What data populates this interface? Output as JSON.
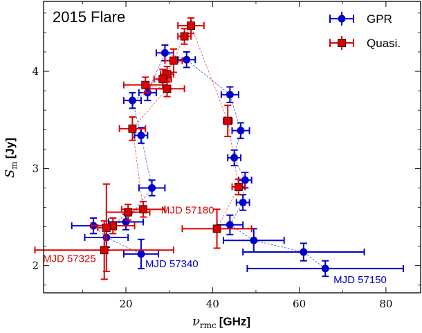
{
  "chart_data": {
    "type": "scatter",
    "title": "2015 Flare",
    "xlabel_symbol": "ν",
    "xlabel_sub": "rmc",
    "xlabel_unit": "[GHz]",
    "ylabel_symbol": "S",
    "ylabel_sub": "m",
    "ylabel_unit": "[Jy]",
    "xlim": [
      1,
      88
    ],
    "ylim": [
      1.72,
      4.72
    ],
    "xticks": [
      20,
      40,
      60,
      80
    ],
    "yticks": [
      2,
      3,
      4
    ],
    "legend_position": "top-right",
    "colors": {
      "gpr": "#0000cc",
      "quasi": "#dd0000"
    },
    "series": [
      {
        "name": "GPR",
        "marker": "circle",
        "color": "#0000cc",
        "points": [
          {
            "x": 66,
            "y": 1.97,
            "xerr": 18,
            "yerr": 0.08
          },
          {
            "x": 61,
            "y": 2.14,
            "xerr": 14,
            "yerr": 0.09
          },
          {
            "x": 49.5,
            "y": 2.26,
            "xerr": 7,
            "yerr": 0.12
          },
          {
            "x": 44,
            "y": 2.42,
            "xerr": 3,
            "yerr": 0.1
          },
          {
            "x": 47,
            "y": 2.65,
            "xerr": 1.5,
            "yerr": 0.08
          },
          {
            "x": 47.5,
            "y": 2.88,
            "xerr": 1.5,
            "yerr": 0.08
          },
          {
            "x": 45,
            "y": 3.11,
            "xerr": 1.5,
            "yerr": 0.08
          },
          {
            "x": 46.5,
            "y": 3.39,
            "xerr": 2,
            "yerr": 0.08
          },
          {
            "x": 44,
            "y": 3.76,
            "xerr": 2,
            "yerr": 0.08
          },
          {
            "x": 34,
            "y": 4.12,
            "xerr": 2,
            "yerr": 0.08
          },
          {
            "x": 29,
            "y": 4.19,
            "xerr": 2,
            "yerr": 0.08
          },
          {
            "x": 25,
            "y": 3.78,
            "xerr": 2,
            "yerr": 0.08
          },
          {
            "x": 21.5,
            "y": 3.7,
            "xerr": 2,
            "yerr": 0.08
          },
          {
            "x": 23.5,
            "y": 3.34,
            "xerr": 1.5,
            "yerr": 0.08
          },
          {
            "x": 26,
            "y": 2.8,
            "xerr": 3,
            "yerr": 0.08
          },
          {
            "x": 20,
            "y": 2.45,
            "xerr": 4,
            "yerr": 0.08
          },
          {
            "x": 12.5,
            "y": 2.41,
            "xerr": 5,
            "yerr": 0.08
          },
          {
            "x": 15.5,
            "y": 2.29,
            "xerr": 5,
            "yerr": 0.1
          },
          {
            "x": 23.5,
            "y": 2.12,
            "xerr": 4,
            "yerr": 0.15
          }
        ]
      },
      {
        "name": "Quasi.",
        "marker": "square",
        "color": "#dd0000",
        "points": [
          {
            "x": 41,
            "y": 2.38,
            "xerr": 8,
            "yerr": 0.2
          },
          {
            "x": 46,
            "y": 2.81,
            "xerr": 1.5,
            "yerr": 0.08
          },
          {
            "x": 43.5,
            "y": 3.49,
            "xerr": 1,
            "yerr": 0.16
          },
          {
            "x": 35,
            "y": 4.47,
            "xerr": 3,
            "yerr": 0.08
          },
          {
            "x": 33.5,
            "y": 4.36,
            "xerr": 1.5,
            "yerr": 0.08
          },
          {
            "x": 31,
            "y": 4.11,
            "xerr": 2,
            "yerr": 0.12
          },
          {
            "x": 29.5,
            "y": 3.97,
            "xerr": 1.5,
            "yerr": 0.08
          },
          {
            "x": 28.5,
            "y": 3.92,
            "xerr": 2,
            "yerr": 0.1
          },
          {
            "x": 24.5,
            "y": 3.86,
            "xerr": 5,
            "yerr": 0.08
          },
          {
            "x": 29.5,
            "y": 3.82,
            "xerr": 4,
            "yerr": 0.08
          },
          {
            "x": 21.5,
            "y": 3.41,
            "xerr": 3,
            "yerr": 0.12
          },
          {
            "x": 24,
            "y": 2.58,
            "xerr": 5,
            "yerr": 0.08
          },
          {
            "x": 20.5,
            "y": 2.55,
            "xerr": 5,
            "yerr": 0.08
          },
          {
            "x": 17,
            "y": 2.41,
            "xerr": 5,
            "yerr": 0.08
          },
          {
            "x": 15.5,
            "y": 2.39,
            "xerr": 2,
            "yerr": 0.45
          },
          {
            "x": 15,
            "y": 2.16,
            "xerr": 16,
            "yerr": 0.3
          }
        ]
      }
    ],
    "annotations": [
      {
        "text": "MJD 57150",
        "x": 66,
        "y": 1.97,
        "color": "#0000cc"
      },
      {
        "text": "MJD 57340",
        "x": 23.5,
        "y": 2.12,
        "color": "#0000cc"
      },
      {
        "text": "MJD 57180",
        "x": 41,
        "y": 2.38,
        "color": "#dd0000"
      },
      {
        "text": "MJD 57325",
        "x": 15,
        "y": 2.16,
        "color": "#dd0000"
      }
    ]
  }
}
